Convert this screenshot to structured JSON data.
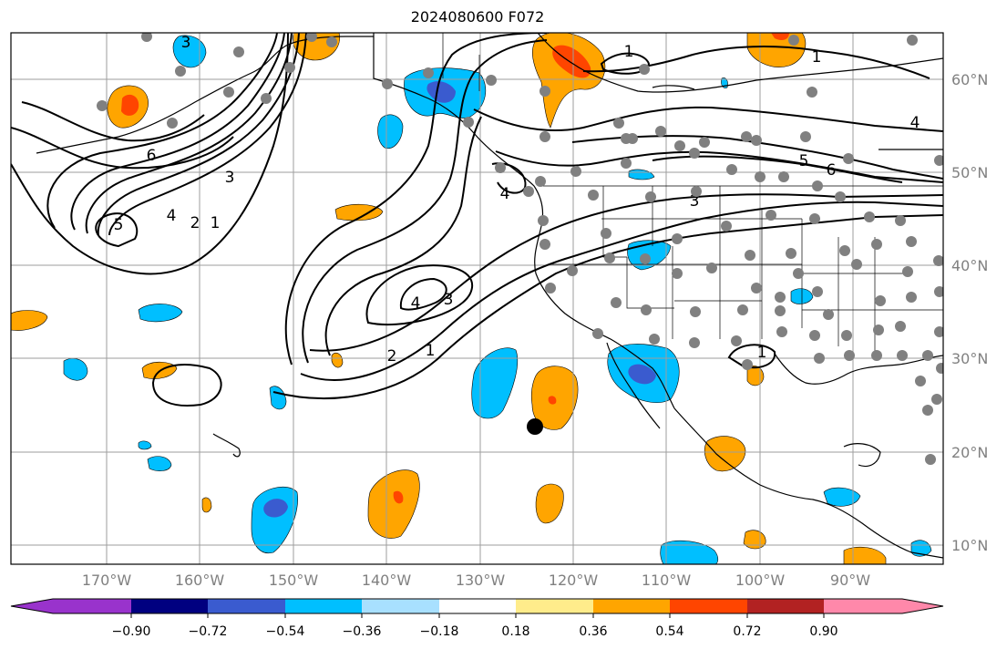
{
  "title": "2024080600 F072",
  "map": {
    "lon_labels": [
      "170°W",
      "160°W",
      "150°W",
      "140°W",
      "130°W",
      "120°W",
      "110°W",
      "100°W",
      "90°W"
    ],
    "lat_labels": [
      "60°N",
      "50°N",
      "40°N",
      "30°N",
      "20°N",
      "10°N"
    ],
    "label_color": "#808080",
    "grid_color": "#9e9e9e",
    "contour_color": "#000000",
    "station_color": "#808080",
    "contour_labels": [
      "3",
      "1",
      "6",
      "5",
      "4",
      "2",
      "1",
      "3",
      "4",
      "1",
      "2",
      "3",
      "4",
      "3",
      "6",
      "5",
      "4",
      "1",
      "1"
    ],
    "marker": {
      "lon": -124,
      "lat": 22.5,
      "color": "#000000"
    }
  },
  "colorbar": {
    "colors": [
      "#9933cc",
      "#000080",
      "#3a5bcf",
      "#00bfff",
      "#a8e0ff",
      "#ffffff",
      "#ffec8b",
      "#ffa500",
      "#ff4500",
      "#b22222",
      "#ff88aa"
    ],
    "ticks": [
      "−0.90",
      "−0.72",
      "−0.54",
      "−0.36",
      "−0.18",
      "0.18",
      "0.36",
      "0.54",
      "0.72",
      "0.90"
    ]
  }
}
